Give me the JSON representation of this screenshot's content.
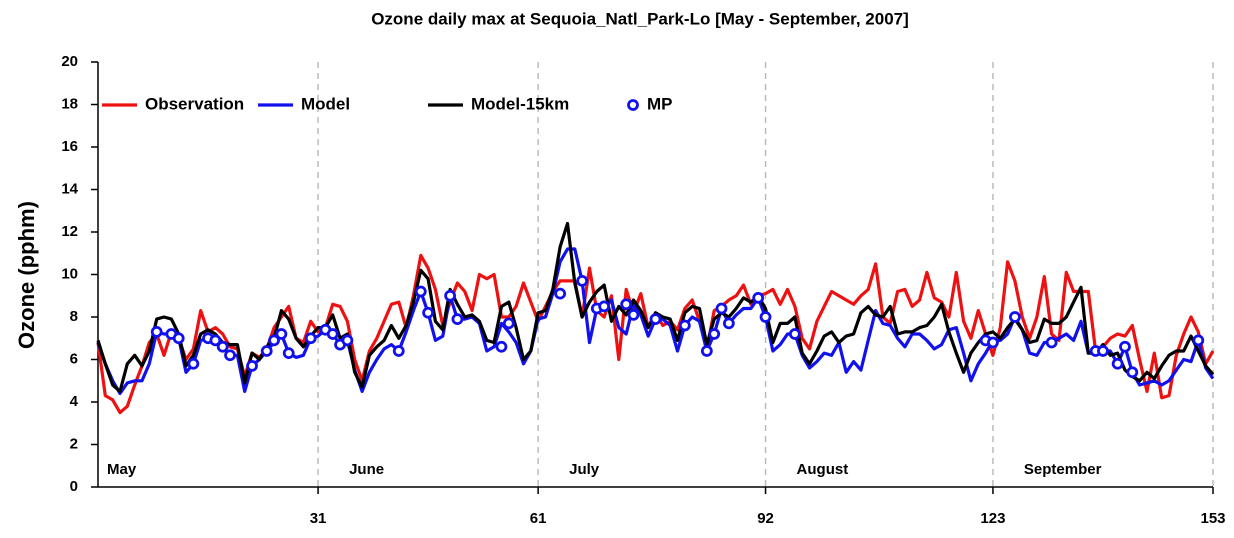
{
  "chart_data": {
    "type": "line",
    "title": "Ozone daily max at  Sequoia_Natl_Park-Lo [May - September, 2007]",
    "y_label": "Ozone (pphm)",
    "months": [
      "May",
      "June",
      "July",
      "August",
      "September"
    ],
    "xlim": [
      1,
      153
    ],
    "xticks": [
      31,
      61,
      92,
      123,
      153
    ],
    "ylim": [
      0,
      20
    ],
    "yticks": [
      0,
      2,
      4,
      6,
      8,
      10,
      12,
      14,
      16,
      18,
      20
    ],
    "xgrid": true,
    "legend": "top-left",
    "series": [
      {
        "name": "Observation",
        "color": "#ee1111",
        "style": "line",
        "values": [
          6.8,
          4.3,
          4.1,
          3.5,
          3.8,
          4.8,
          5.7,
          6.8,
          7.2,
          6.2,
          7.3,
          7.0,
          6.0,
          6.5,
          8.3,
          7.3,
          7.5,
          7.2,
          6.6,
          6.5,
          5.2,
          6.3,
          6.1,
          6.5,
          7.5,
          8.0,
          8.5,
          7.0,
          6.8,
          7.8,
          7.3,
          7.5,
          8.6,
          8.5,
          7.8,
          6.0,
          5.0,
          6.4,
          7.0,
          7.8,
          8.6,
          8.7,
          7.5,
          9.0,
          10.9,
          10.3,
          9.3,
          7.6,
          8.7,
          9.6,
          9.2,
          8.3,
          10.0,
          9.8,
          10.0,
          8.0,
          8.0,
          8.5,
          9.6,
          8.7,
          7.8,
          8.5,
          9.2,
          9.7,
          9.7,
          9.7,
          8.0,
          10.3,
          8.3,
          8.0,
          9.0,
          6.0,
          9.3,
          8.2,
          9.1,
          7.5,
          8.2,
          7.6,
          7.8,
          7.4,
          8.4,
          8.8,
          7.8,
          6.5,
          8.3,
          8.5,
          8.8,
          9.0,
          9.5,
          8.6,
          9.0,
          9.1,
          9.3,
          8.6,
          9.3,
          8.5,
          7.0,
          6.5,
          7.8,
          8.5,
          9.2,
          9.0,
          8.8,
          8.6,
          9.0,
          9.3,
          10.5,
          8.0,
          7.7,
          9.2,
          9.3,
          8.5,
          8.8,
          10.1,
          8.9,
          8.7,
          8.0,
          10.1,
          7.8,
          7.0,
          8.3,
          7.2,
          6.2,
          7.5,
          10.6,
          9.7,
          8.0,
          7.0,
          8.0,
          9.9,
          7.2,
          6.9,
          10.1,
          9.2,
          9.2,
          9.2,
          6.4,
          6.6,
          7.0,
          7.2,
          7.1,
          7.6,
          6.0,
          4.5,
          6.3,
          4.2,
          4.3,
          6.2,
          7.2,
          8.0,
          7.3,
          5.8,
          6.4
        ]
      },
      {
        "name": "Model",
        "color": "#1111ee",
        "style": "line",
        "values": [
          6.8,
          5.8,
          5.0,
          4.4,
          4.9,
          5.0,
          5.0,
          5.8,
          7.3,
          7.2,
          7.2,
          7.0,
          5.4,
          5.8,
          6.9,
          7.0,
          6.9,
          6.6,
          6.2,
          6.2,
          4.5,
          5.7,
          6.0,
          6.4,
          6.8,
          7.2,
          6.3,
          6.1,
          6.2,
          7.0,
          7.1,
          7.4,
          7.2,
          6.7,
          6.9,
          5.5,
          4.5,
          5.4,
          6.0,
          6.5,
          6.7,
          6.4,
          7.3,
          8.3,
          9.2,
          8.2,
          6.9,
          7.1,
          9.0,
          7.9,
          7.9,
          8.0,
          7.7,
          6.4,
          6.6,
          7.7,
          7.3,
          6.8,
          5.8,
          6.4,
          7.9,
          8.0,
          9.1,
          10.6,
          11.2,
          11.2,
          9.7,
          6.8,
          8.4,
          8.5,
          8.8,
          7.5,
          7.2,
          8.6,
          8.1,
          7.1,
          7.9,
          7.9,
          7.6,
          6.4,
          7.6,
          8.0,
          7.8,
          6.4,
          7.2,
          8.4,
          7.7,
          8.1,
          8.4,
          8.4,
          8.9,
          8.0,
          6.4,
          6.7,
          7.2,
          7.2,
          6.2,
          5.6,
          5.9,
          6.3,
          6.2,
          6.8,
          5.4,
          5.9,
          5.5,
          6.9,
          8.3,
          7.7,
          7.6,
          7.0,
          6.6,
          7.2,
          7.2,
          6.9,
          6.5,
          6.7,
          7.4,
          7.5,
          6.3,
          5.0,
          5.8,
          6.3,
          6.9,
          6.9,
          7.2,
          8.0,
          7.4,
          6.3,
          6.2,
          6.8,
          6.8,
          7.0,
          7.2,
          6.9,
          7.8,
          6.3,
          6.4,
          6.4,
          6.4,
          5.8,
          6.6,
          5.4,
          4.8,
          4.9,
          5.0,
          4.8,
          5.0,
          5.5,
          6.0,
          5.9,
          6.9,
          5.6,
          5.1
        ]
      },
      {
        "name": "Model-15km",
        "color": "#000000",
        "style": "line",
        "values": [
          6.9,
          5.8,
          4.8,
          4.5,
          5.8,
          6.2,
          5.7,
          6.4,
          7.9,
          8.0,
          7.9,
          7.2,
          5.7,
          6.2,
          7.2,
          7.4,
          7.2,
          6.8,
          6.7,
          6.7,
          4.9,
          6.3,
          6.0,
          6.6,
          7.0,
          8.3,
          7.9,
          7.0,
          6.6,
          7.1,
          7.5,
          7.5,
          8.1,
          7.0,
          7.2,
          5.4,
          4.7,
          6.2,
          6.6,
          6.9,
          7.6,
          7.0,
          7.6,
          8.7,
          10.2,
          9.8,
          7.8,
          7.4,
          9.3,
          8.6,
          8.0,
          8.1,
          7.8,
          6.9,
          6.8,
          8.5,
          8.7,
          7.5,
          6.0,
          6.4,
          8.2,
          8.3,
          9.3,
          11.3,
          12.4,
          9.6,
          8.0,
          8.7,
          9.2,
          9.5,
          7.8,
          8.5,
          8.1,
          8.8,
          8.3,
          7.5,
          8.2,
          8.0,
          7.9,
          6.9,
          8.2,
          8.5,
          8.4,
          6.7,
          7.9,
          8.2,
          8.0,
          8.4,
          8.9,
          8.7,
          9.0,
          8.4,
          6.8,
          7.7,
          7.7,
          8.0,
          6.3,
          5.8,
          6.4,
          7.1,
          7.3,
          6.8,
          7.1,
          7.2,
          8.2,
          8.5,
          8.1,
          8.0,
          8.5,
          7.2,
          7.3,
          7.3,
          7.5,
          7.6,
          8.0,
          8.6,
          7.3,
          6.3,
          5.4,
          6.3,
          6.8,
          7.2,
          7.3,
          7.0,
          7.5,
          7.9,
          7.4,
          6.8,
          6.9,
          7.9,
          7.7,
          7.7,
          8.0,
          8.7,
          9.4,
          6.3,
          6.3,
          6.7,
          6.2,
          6.3,
          5.5,
          5.2,
          5.0,
          5.4,
          5.1,
          5.7,
          6.2,
          6.4,
          6.4,
          7.1,
          6.4,
          5.7,
          5.3
        ]
      },
      {
        "name": "MP",
        "color": "#1111ee",
        "style": "marker",
        "x": [
          9,
          11,
          12,
          14,
          16,
          17,
          18,
          19,
          22,
          24,
          25,
          26,
          27,
          30,
          32,
          33,
          34,
          35,
          42,
          45,
          46,
          49,
          50,
          56,
          57,
          64,
          67,
          69,
          70,
          73,
          74,
          77,
          81,
          84,
          85,
          86,
          87,
          91,
          92,
          96,
          122,
          123,
          126,
          131,
          137,
          138,
          140,
          141,
          142,
          151
        ],
        "values": [
          7.3,
          7.2,
          7.0,
          5.8,
          7.0,
          6.9,
          6.6,
          6.2,
          5.7,
          6.4,
          6.9,
          7.2,
          6.3,
          7.0,
          7.4,
          7.2,
          6.7,
          6.9,
          6.4,
          9.2,
          8.2,
          9.0,
          7.9,
          6.6,
          7.7,
          9.1,
          9.7,
          8.4,
          8.5,
          8.6,
          8.1,
          7.9,
          7.6,
          6.4,
          7.2,
          8.4,
          7.7,
          8.9,
          8.0,
          7.2,
          6.9,
          6.8,
          8.0,
          6.8,
          6.4,
          6.4,
          5.8,
          6.6,
          5.4,
          6.9
        ]
      }
    ]
  }
}
